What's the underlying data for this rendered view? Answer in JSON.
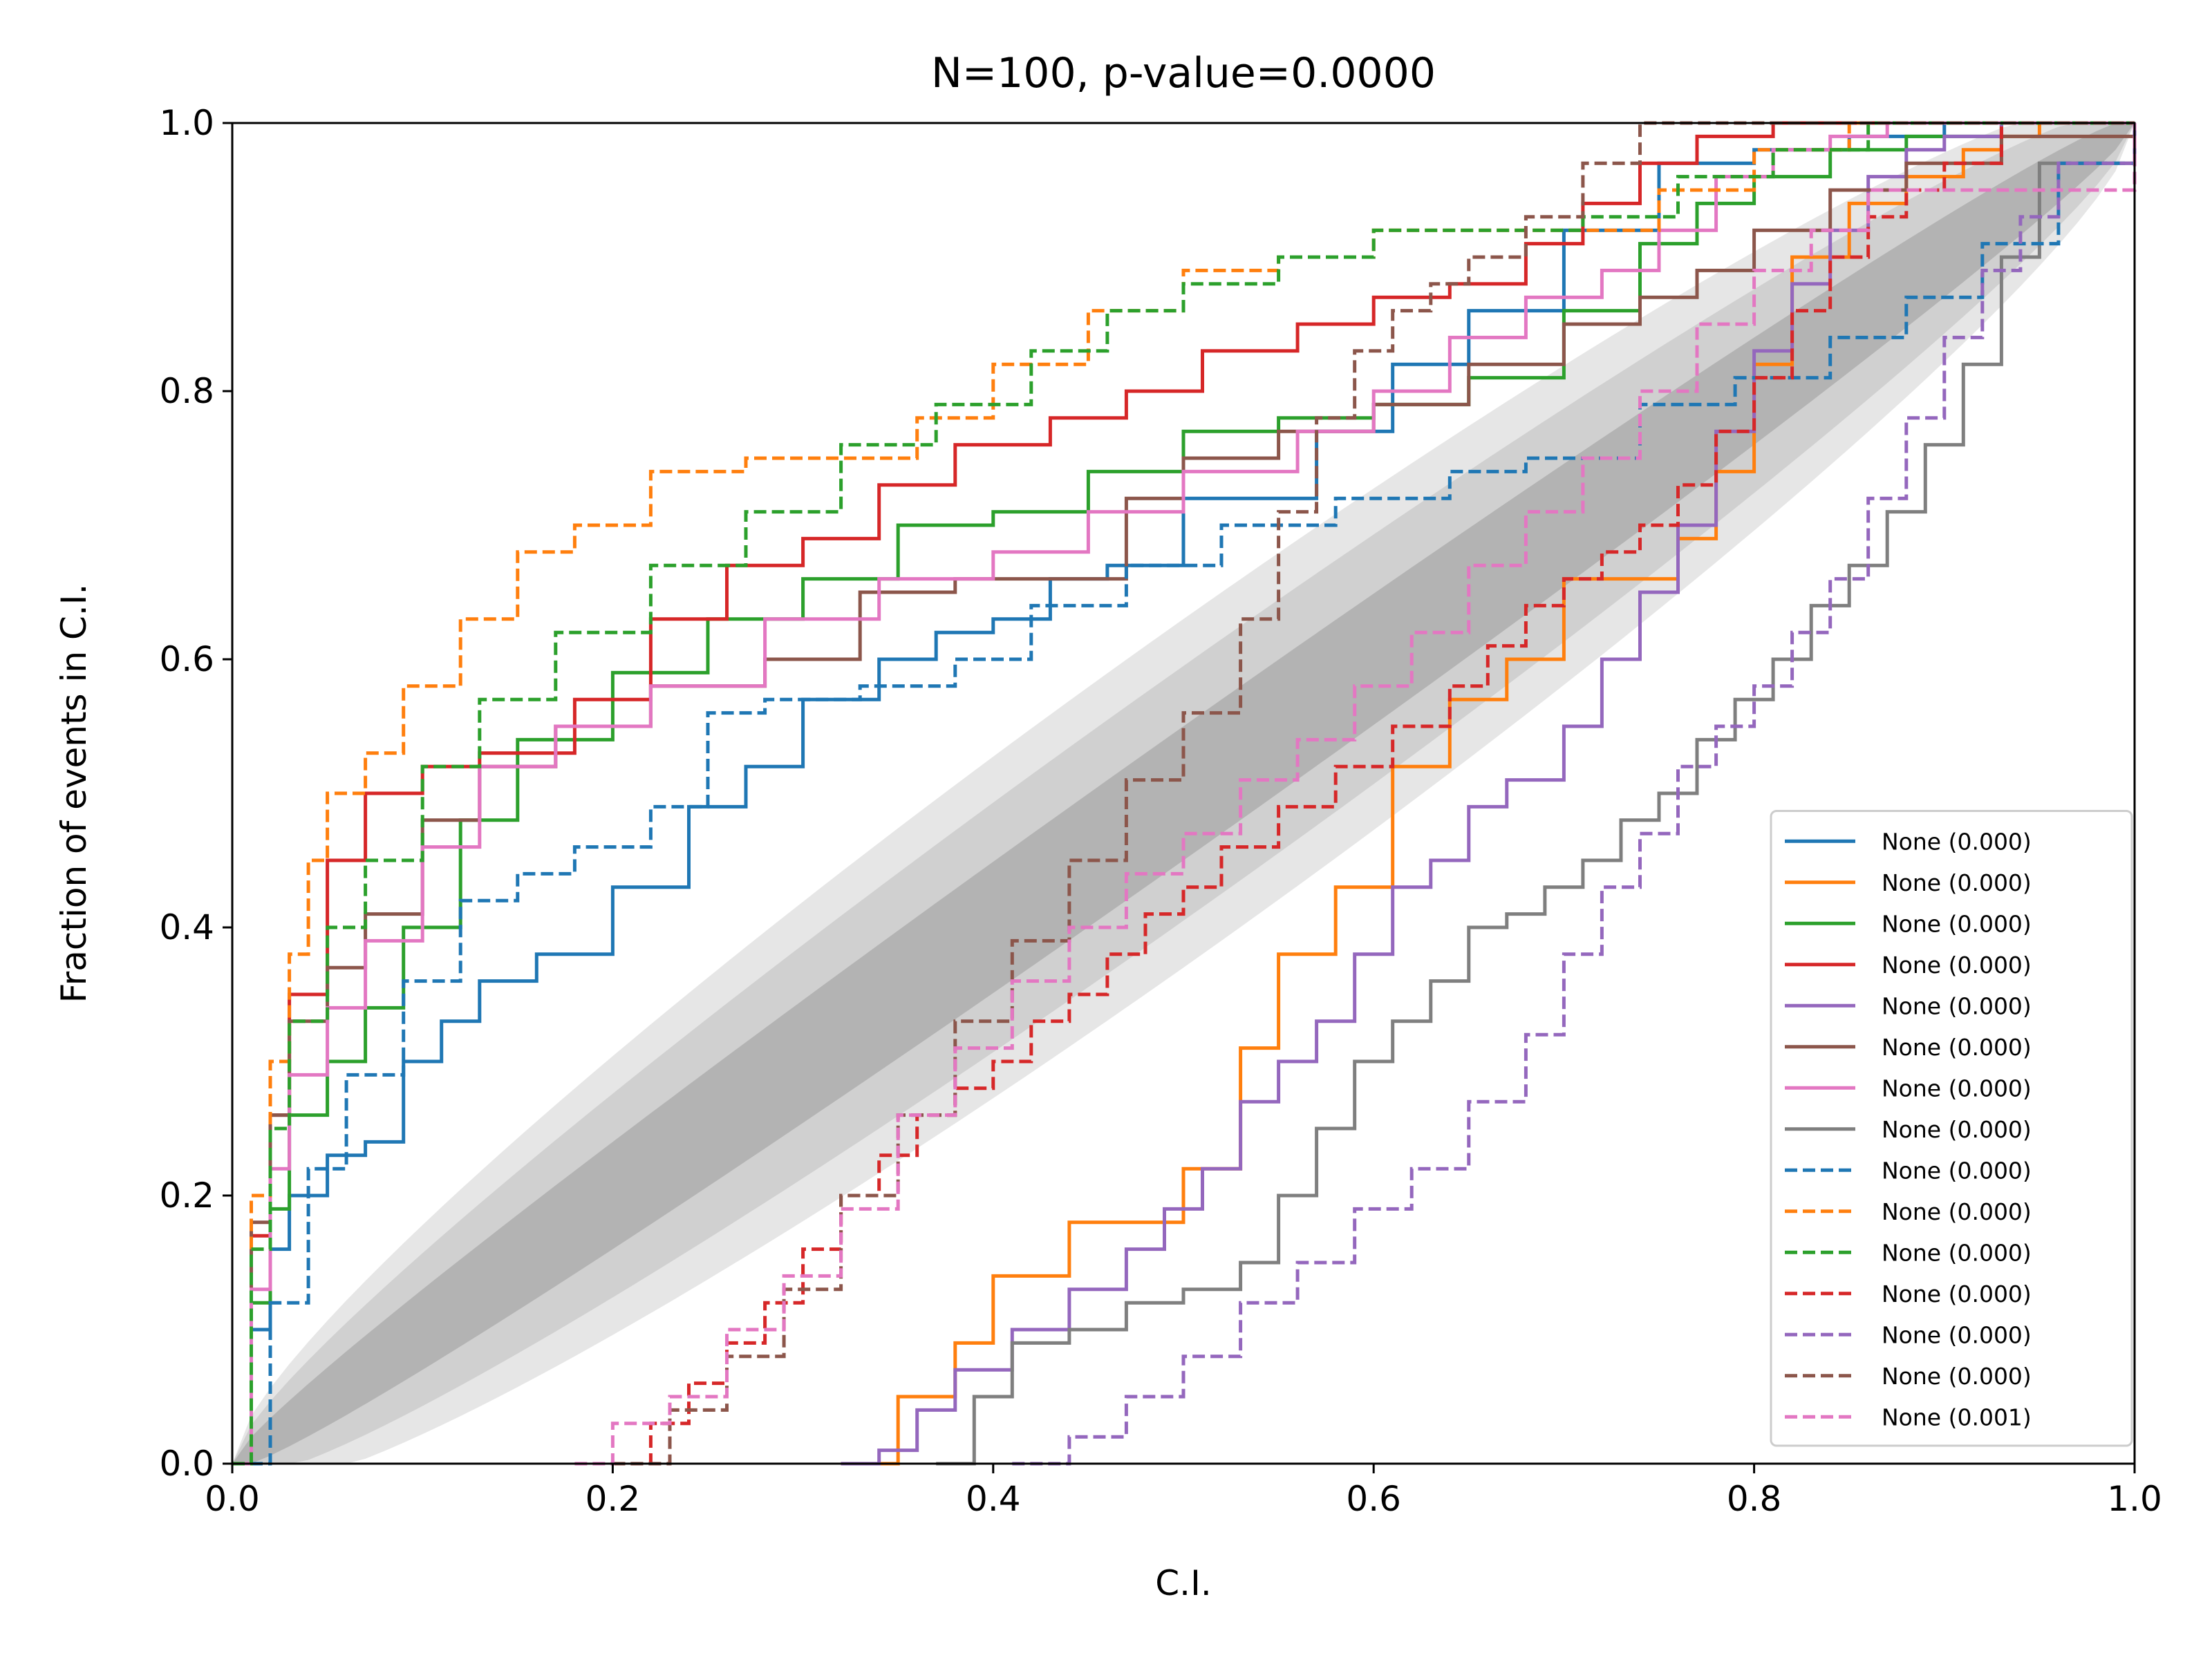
{
  "chart_data": {
    "type": "line",
    "title": "N=100, p-value=0.0000",
    "xlabel": "C.I.",
    "ylabel": "Fraction of events in C.I.",
    "xlim": [
      0,
      1
    ],
    "ylim": [
      0,
      1
    ],
    "xticks": [
      "0.0",
      "0.2",
      "0.4",
      "0.6",
      "0.8",
      "1.0"
    ],
    "yticks": [
      "0.0",
      "0.2",
      "0.4",
      "0.6",
      "0.8",
      "1.0"
    ],
    "grid": false,
    "legend_position": "lower right",
    "confidence_bands": [
      {
        "level": "3-sigma",
        "color": "#e6e6e6",
        "half_width": 0.13
      },
      {
        "level": "2-sigma",
        "color": "#d0d0d0",
        "half_width": 0.095
      },
      {
        "level": "1-sigma",
        "color": "#b3b3b3",
        "half_width": 0.05
      }
    ],
    "series": [
      {
        "name": "None (0.000)",
        "color": "#1f77b4",
        "style": "solid",
        "x": [
          0,
          0.01,
          0.02,
          0.03,
          0.05,
          0.07,
          0.09,
          0.11,
          0.13,
          0.16,
          0.2,
          0.24,
          0.27,
          0.3,
          0.34,
          0.37,
          0.4,
          0.43,
          0.46,
          0.5,
          0.53,
          0.57,
          0.61,
          0.65,
          0.7,
          0.75,
          0.8,
          0.85,
          0.9,
          0.93,
          0.96,
          1.0
        ],
        "y": [
          0,
          0.1,
          0.16,
          0.2,
          0.23,
          0.24,
          0.3,
          0.33,
          0.36,
          0.38,
          0.43,
          0.49,
          0.52,
          0.57,
          0.6,
          0.62,
          0.63,
          0.66,
          0.67,
          0.72,
          0.72,
          0.77,
          0.82,
          0.86,
          0.92,
          0.97,
          0.98,
          0.99,
          1.0,
          1.0,
          1.0,
          1.0
        ]
      },
      {
        "name": "None (0.000)",
        "color": "#ff7f0e",
        "style": "solid",
        "x": [
          0.32,
          0.35,
          0.38,
          0.4,
          0.44,
          0.48,
          0.5,
          0.53,
          0.55,
          0.58,
          0.61,
          0.64,
          0.67,
          0.7,
          0.73,
          0.76,
          0.78,
          0.8,
          0.82,
          0.85,
          0.88,
          0.91,
          0.93,
          0.95,
          1.0
        ],
        "y": [
          0,
          0.05,
          0.09,
          0.14,
          0.18,
          0.18,
          0.22,
          0.31,
          0.38,
          0.43,
          0.52,
          0.57,
          0.6,
          0.66,
          0.66,
          0.69,
          0.74,
          0.82,
          0.9,
          0.94,
          0.96,
          0.98,
          0.99,
          1.0,
          1.0
        ]
      },
      {
        "name": "None (0.000)",
        "color": "#2ca02c",
        "style": "solid",
        "x": [
          0,
          0.01,
          0.02,
          0.03,
          0.05,
          0.07,
          0.09,
          0.12,
          0.15,
          0.2,
          0.25,
          0.3,
          0.35,
          0.4,
          0.45,
          0.5,
          0.55,
          0.6,
          0.65,
          0.7,
          0.74,
          0.77,
          0.8,
          0.84,
          0.88,
          0.93,
          1.0
        ],
        "y": [
          0,
          0.12,
          0.19,
          0.26,
          0.3,
          0.34,
          0.4,
          0.48,
          0.54,
          0.59,
          0.63,
          0.66,
          0.7,
          0.71,
          0.74,
          0.77,
          0.78,
          0.79,
          0.81,
          0.86,
          0.91,
          0.94,
          0.96,
          0.98,
          0.99,
          1.0,
          1.0
        ]
      },
      {
        "name": "None (0.000)",
        "color": "#d62728",
        "style": "solid",
        "x": [
          0,
          0.01,
          0.02,
          0.03,
          0.05,
          0.07,
          0.1,
          0.13,
          0.18,
          0.22,
          0.26,
          0.3,
          0.34,
          0.38,
          0.43,
          0.47,
          0.51,
          0.56,
          0.6,
          0.64,
          0.68,
          0.71,
          0.74,
          0.77,
          0.81,
          0.86,
          0.9,
          0.95,
          1.0
        ],
        "y": [
          0,
          0.17,
          0.26,
          0.35,
          0.45,
          0.5,
          0.52,
          0.53,
          0.57,
          0.63,
          0.67,
          0.69,
          0.73,
          0.76,
          0.78,
          0.8,
          0.83,
          0.85,
          0.87,
          0.88,
          0.91,
          0.94,
          0.97,
          0.99,
          1.0,
          1.0,
          1.0,
          1.0,
          1.0
        ]
      },
      {
        "name": "None (0.000)",
        "color": "#9467bd",
        "style": "solid",
        "x": [
          0.32,
          0.34,
          0.36,
          0.38,
          0.41,
          0.44,
          0.47,
          0.49,
          0.51,
          0.53,
          0.55,
          0.57,
          0.59,
          0.61,
          0.63,
          0.65,
          0.67,
          0.7,
          0.72,
          0.74,
          0.76,
          0.78,
          0.8,
          0.82,
          0.84,
          0.86,
          0.88,
          0.9,
          0.93,
          0.96,
          1.0
        ],
        "y": [
          0,
          0.01,
          0.04,
          0.07,
          0.1,
          0.13,
          0.16,
          0.19,
          0.22,
          0.27,
          0.3,
          0.33,
          0.38,
          0.43,
          0.45,
          0.49,
          0.51,
          0.55,
          0.6,
          0.65,
          0.7,
          0.77,
          0.83,
          0.88,
          0.92,
          0.96,
          0.98,
          0.99,
          1.0,
          1.0,
          1.0
        ]
      },
      {
        "name": "None (0.000)",
        "color": "#8c564b",
        "style": "solid",
        "x": [
          0,
          0.01,
          0.02,
          0.03,
          0.05,
          0.07,
          0.1,
          0.13,
          0.17,
          0.22,
          0.28,
          0.33,
          0.38,
          0.44,
          0.47,
          0.5,
          0.55,
          0.6,
          0.65,
          0.7,
          0.74,
          0.77,
          0.8,
          0.84,
          0.88,
          0.93,
          1.0
        ],
        "y": [
          0,
          0.18,
          0.26,
          0.33,
          0.37,
          0.41,
          0.48,
          0.52,
          0.55,
          0.58,
          0.6,
          0.65,
          0.66,
          0.66,
          0.72,
          0.75,
          0.77,
          0.79,
          0.82,
          0.85,
          0.87,
          0.89,
          0.92,
          0.95,
          0.97,
          0.99,
          1.0
        ]
      },
      {
        "name": "None (0.000)",
        "color": "#e377c2",
        "style": "solid",
        "x": [
          0,
          0.01,
          0.02,
          0.03,
          0.05,
          0.07,
          0.1,
          0.13,
          0.17,
          0.22,
          0.28,
          0.34,
          0.4,
          0.45,
          0.5,
          0.56,
          0.6,
          0.64,
          0.68,
          0.72,
          0.75,
          0.78,
          0.81,
          0.84,
          0.87,
          0.92,
          1.0
        ],
        "y": [
          0,
          0.13,
          0.22,
          0.29,
          0.34,
          0.39,
          0.46,
          0.52,
          0.55,
          0.58,
          0.63,
          0.66,
          0.68,
          0.71,
          0.74,
          0.77,
          0.8,
          0.84,
          0.87,
          0.89,
          0.92,
          0.96,
          0.98,
          0.99,
          1.0,
          1.0,
          1.0
        ]
      },
      {
        "name": "None (0.000)",
        "color": "#7f7f7f",
        "style": "solid",
        "x": [
          0.37,
          0.39,
          0.41,
          0.44,
          0.47,
          0.5,
          0.53,
          0.55,
          0.57,
          0.59,
          0.61,
          0.63,
          0.65,
          0.67,
          0.69,
          0.71,
          0.73,
          0.75,
          0.77,
          0.79,
          0.81,
          0.83,
          0.85,
          0.87,
          0.89,
          0.91,
          0.93,
          0.95,
          1.0
        ],
        "y": [
          0,
          0.05,
          0.09,
          0.1,
          0.12,
          0.13,
          0.15,
          0.2,
          0.25,
          0.3,
          0.33,
          0.36,
          0.4,
          0.41,
          0.43,
          0.45,
          0.48,
          0.5,
          0.54,
          0.57,
          0.6,
          0.64,
          0.67,
          0.71,
          0.76,
          0.82,
          0.9,
          0.97,
          1.0
        ]
      },
      {
        "name": "None (0.000)",
        "color": "#1f77b4",
        "style": "dashed",
        "x": [
          0,
          0.02,
          0.04,
          0.06,
          0.09,
          0.12,
          0.15,
          0.18,
          0.22,
          0.25,
          0.28,
          0.33,
          0.38,
          0.42,
          0.47,
          0.52,
          0.58,
          0.64,
          0.68,
          0.74,
          0.79,
          0.84,
          0.88,
          0.92,
          0.96,
          1.0
        ],
        "y": [
          0,
          0.12,
          0.22,
          0.29,
          0.36,
          0.42,
          0.44,
          0.46,
          0.49,
          0.56,
          0.57,
          0.58,
          0.6,
          0.64,
          0.67,
          0.7,
          0.72,
          0.74,
          0.75,
          0.79,
          0.81,
          0.84,
          0.87,
          0.91,
          0.97,
          1.0
        ]
      },
      {
        "name": "None (0.000)",
        "color": "#ff7f0e",
        "style": "dashed",
        "x": [
          0,
          0.01,
          0.02,
          0.03,
          0.04,
          0.05,
          0.07,
          0.09,
          0.12,
          0.15,
          0.18,
          0.22,
          0.27,
          0.32,
          0.36,
          0.4,
          0.45,
          0.5,
          0.55,
          0.6,
          0.65,
          0.7,
          0.75,
          0.8,
          0.85,
          1.0
        ],
        "y": [
          0,
          0.2,
          0.3,
          0.38,
          0.45,
          0.5,
          0.53,
          0.58,
          0.63,
          0.68,
          0.7,
          0.74,
          0.75,
          0.75,
          0.78,
          0.82,
          0.86,
          0.89,
          0.9,
          0.92,
          0.92,
          0.92,
          0.95,
          0.98,
          1.0,
          1.0
        ]
      },
      {
        "name": "None (0.000)",
        "color": "#2ca02c",
        "style": "dashed",
        "x": [
          0,
          0.01,
          0.02,
          0.03,
          0.05,
          0.07,
          0.1,
          0.13,
          0.17,
          0.22,
          0.27,
          0.32,
          0.37,
          0.42,
          0.46,
          0.5,
          0.55,
          0.6,
          0.66,
          0.71,
          0.76,
          0.81,
          0.86,
          1.0
        ],
        "y": [
          0,
          0.16,
          0.25,
          0.33,
          0.4,
          0.45,
          0.52,
          0.57,
          0.62,
          0.67,
          0.71,
          0.76,
          0.79,
          0.83,
          0.86,
          0.88,
          0.9,
          0.92,
          0.92,
          0.93,
          0.96,
          0.98,
          1.0,
          1.0
        ]
      },
      {
        "name": "None (0.000)",
        "color": "#d62728",
        "style": "dashed",
        "x": [
          0.2,
          0.22,
          0.24,
          0.26,
          0.28,
          0.3,
          0.32,
          0.34,
          0.36,
          0.38,
          0.4,
          0.42,
          0.44,
          0.46,
          0.48,
          0.5,
          0.52,
          0.55,
          0.58,
          0.61,
          0.64,
          0.66,
          0.68,
          0.7,
          0.72,
          0.74,
          0.76,
          0.78,
          0.8,
          0.82,
          0.84,
          0.86,
          0.88,
          0.9,
          0.93,
          1.0
        ],
        "y": [
          0,
          0.03,
          0.06,
          0.09,
          0.12,
          0.16,
          0.2,
          0.23,
          0.26,
          0.28,
          0.3,
          0.33,
          0.35,
          0.38,
          0.41,
          0.43,
          0.46,
          0.49,
          0.52,
          0.55,
          0.58,
          0.61,
          0.64,
          0.66,
          0.68,
          0.7,
          0.73,
          0.77,
          0.81,
          0.86,
          0.9,
          0.93,
          0.95,
          0.97,
          1.0,
          1.0
        ]
      },
      {
        "name": "None (0.000)",
        "color": "#9467bd",
        "style": "dashed",
        "x": [
          0.41,
          0.44,
          0.47,
          0.5,
          0.53,
          0.56,
          0.59,
          0.62,
          0.65,
          0.68,
          0.7,
          0.72,
          0.74,
          0.76,
          0.78,
          0.8,
          0.82,
          0.84,
          0.86,
          0.88,
          0.9,
          0.92,
          0.94,
          0.96,
          1.0
        ],
        "y": [
          0,
          0.02,
          0.05,
          0.08,
          0.12,
          0.15,
          0.19,
          0.22,
          0.27,
          0.32,
          0.38,
          0.43,
          0.47,
          0.52,
          0.55,
          0.58,
          0.62,
          0.66,
          0.72,
          0.78,
          0.84,
          0.89,
          0.93,
          0.97,
          1.0
        ]
      },
      {
        "name": "None (0.000)",
        "color": "#8c564b",
        "style": "dashed",
        "x": [
          0.2,
          0.23,
          0.26,
          0.29,
          0.32,
          0.35,
          0.38,
          0.41,
          0.44,
          0.47,
          0.5,
          0.53,
          0.55,
          0.57,
          0.59,
          0.61,
          0.63,
          0.65,
          0.68,
          0.71,
          0.74,
          0.77,
          0.8,
          0.85,
          1.0
        ],
        "y": [
          0,
          0.04,
          0.08,
          0.13,
          0.2,
          0.26,
          0.33,
          0.39,
          0.45,
          0.51,
          0.56,
          0.63,
          0.71,
          0.78,
          0.83,
          0.86,
          0.88,
          0.9,
          0.93,
          0.97,
          1.0,
          1.0,
          1.0,
          1.0,
          1.0
        ]
      },
      {
        "name": "None (0.001)",
        "color": "#e377c2",
        "style": "dashed",
        "x": [
          0.18,
          0.2,
          0.23,
          0.26,
          0.29,
          0.32,
          0.35,
          0.38,
          0.41,
          0.44,
          0.47,
          0.5,
          0.53,
          0.56,
          0.59,
          0.62,
          0.65,
          0.68,
          0.71,
          0.74,
          0.77,
          0.8,
          0.83,
          0.86,
          1.0
        ],
        "y": [
          0,
          0.03,
          0.05,
          0.1,
          0.14,
          0.19,
          0.26,
          0.31,
          0.36,
          0.4,
          0.44,
          0.47,
          0.51,
          0.54,
          0.58,
          0.62,
          0.67,
          0.71,
          0.75,
          0.8,
          0.85,
          0.89,
          0.92,
          0.95,
          1.0
        ]
      }
    ]
  }
}
